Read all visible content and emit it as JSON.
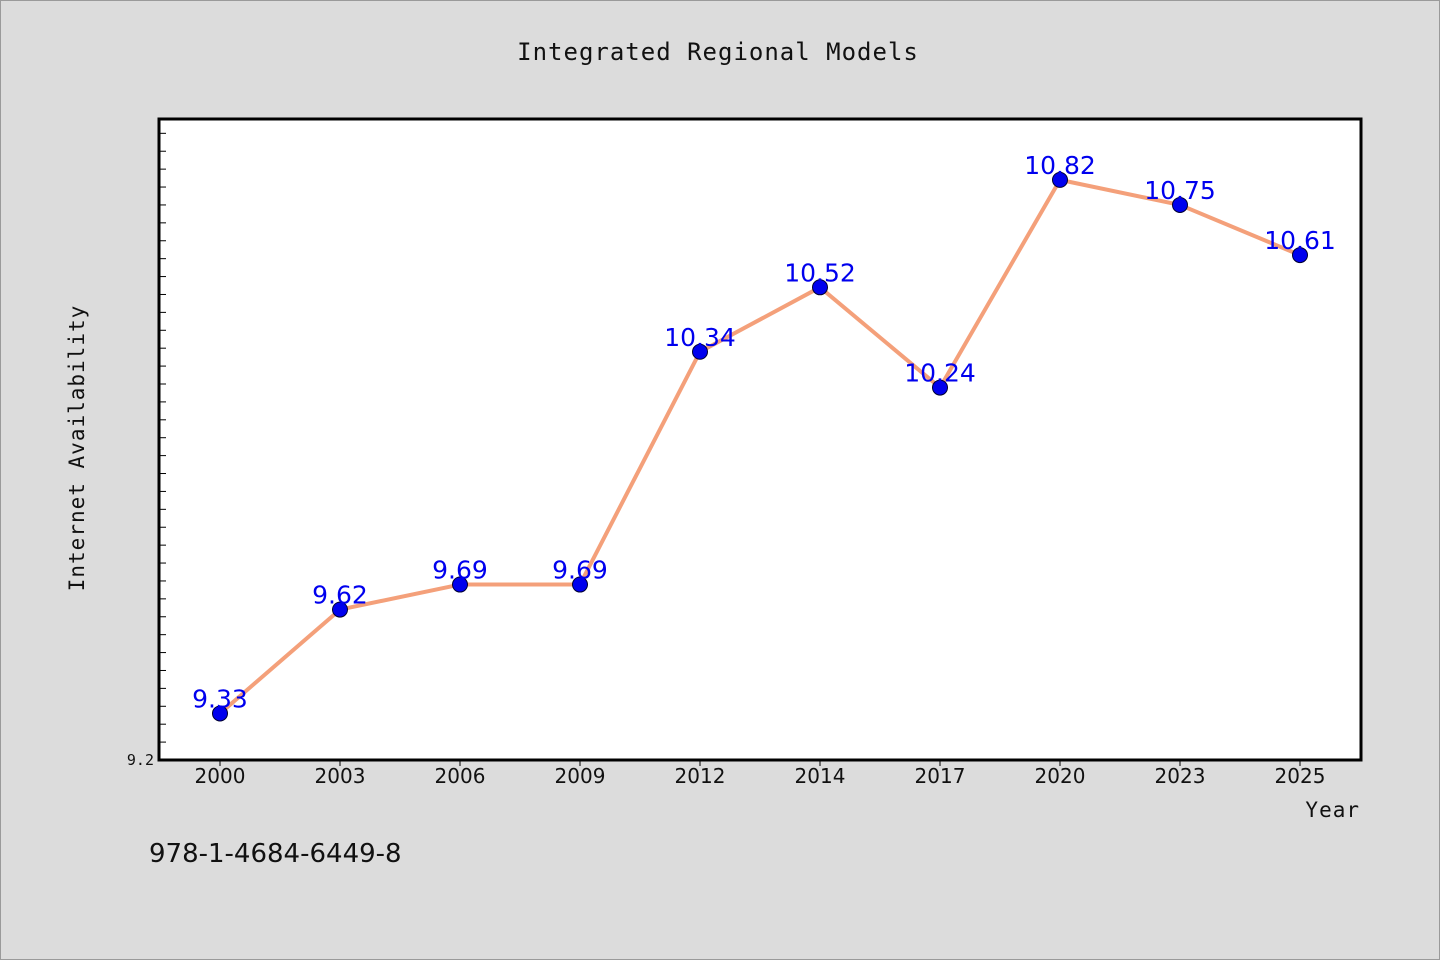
{
  "chart_data": {
    "type": "line",
    "title": "Integrated Regional Models",
    "xlabel": "Year",
    "ylabel": "Internet Availability",
    "categories": [
      "2000",
      "2003",
      "2006",
      "2009",
      "2012",
      "2014",
      "2017",
      "2020",
      "2023",
      "2025"
    ],
    "series": [
      {
        "values": [
          9.33,
          9.62,
          9.69,
          9.69,
          10.34,
          10.52,
          10.24,
          10.82,
          10.75,
          10.61
        ],
        "labels": [
          "9.33",
          "9.62",
          "9.69",
          "9.69",
          "10.34",
          "10.52",
          "10.24",
          "10.82",
          "10.75",
          "10.61"
        ],
        "line_color": "#f4a07a",
        "marker_color": "#0000ee"
      }
    ],
    "yticks": [
      {
        "value": 9.2,
        "label": "9.2"
      }
    ],
    "ylim": [
      9.2,
      10.99
    ],
    "grid": false,
    "footer_text": "978-1-4684-6449-8"
  },
  "colors": {
    "background": "#dcdcdc",
    "plot_background": "#ffffff",
    "label_color": "#0000ee"
  }
}
